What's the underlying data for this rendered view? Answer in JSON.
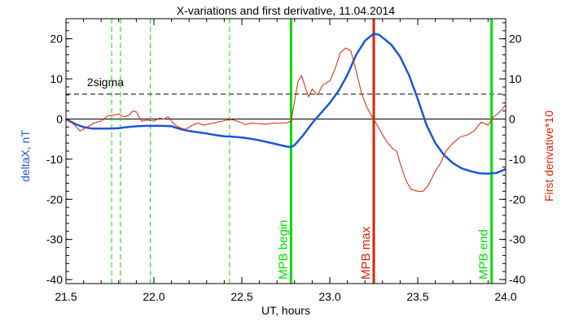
{
  "chart_data": {
    "type": "line",
    "title": "X-variations and first derivative, 11.04.2014",
    "xlabel": "UT, hours",
    "ylabel_left": "deltaX, nT",
    "ylabel_right": "First derivative*10",
    "xlim": [
      21.5,
      24.0
    ],
    "ylim": [
      -41,
      25
    ],
    "x_ticks": [
      "21.5",
      "22.0",
      "22.5",
      "23.0",
      "23.5",
      "24.0"
    ],
    "y_ticks_left": [
      "20",
      "10",
      "0",
      "-10",
      "-20",
      "-30",
      "-40"
    ],
    "y_ticks_right": [
      "20",
      "10",
      "0",
      "-10",
      "-20",
      "-30",
      "-40"
    ],
    "grid": false,
    "sigma_line": {
      "label": "2sigma",
      "y": 6.2
    },
    "dashed_verticals": [
      21.76,
      21.81,
      21.98,
      22.43
    ],
    "markers": [
      {
        "label": "MPB begin",
        "x": 22.78,
        "color": "#00dd00"
      },
      {
        "label": "MPB max",
        "x": 23.25,
        "color": "#dd2200"
      },
      {
        "label": "MPB end",
        "x": 23.92,
        "color": "#00dd00"
      }
    ],
    "series": [
      {
        "key": "deltaX",
        "color": "#1a56d6",
        "points": [
          [
            21.5,
            0.0
          ],
          [
            21.55,
            -1.2
          ],
          [
            21.6,
            -2.0
          ],
          [
            21.65,
            -2.4
          ],
          [
            21.7,
            -2.4
          ],
          [
            21.75,
            -2.4
          ],
          [
            21.8,
            -2.3
          ],
          [
            21.85,
            -2.0
          ],
          [
            21.9,
            -1.8
          ],
          [
            21.95,
            -1.7
          ],
          [
            22.0,
            -1.7
          ],
          [
            22.05,
            -1.7
          ],
          [
            22.1,
            -1.8
          ],
          [
            22.15,
            -2.5
          ],
          [
            22.2,
            -3.0
          ],
          [
            22.25,
            -3.3
          ],
          [
            22.3,
            -3.6
          ],
          [
            22.35,
            -4.0
          ],
          [
            22.4,
            -4.3
          ],
          [
            22.45,
            -4.4
          ],
          [
            22.5,
            -4.6
          ],
          [
            22.55,
            -4.9
          ],
          [
            22.6,
            -5.3
          ],
          [
            22.65,
            -5.8
          ],
          [
            22.7,
            -6.3
          ],
          [
            22.75,
            -6.8
          ],
          [
            22.78,
            -7.0
          ],
          [
            22.8,
            -6.5
          ],
          [
            22.85,
            -4.0
          ],
          [
            22.9,
            -1.0
          ],
          [
            22.95,
            1.5
          ],
          [
            23.0,
            4.0
          ],
          [
            23.05,
            7.0
          ],
          [
            23.1,
            11.0
          ],
          [
            23.15,
            16.0
          ],
          [
            23.2,
            19.5
          ],
          [
            23.25,
            21.3
          ],
          [
            23.28,
            21.0
          ],
          [
            23.3,
            20.3
          ],
          [
            23.35,
            18.5
          ],
          [
            23.4,
            15.5
          ],
          [
            23.45,
            11.0
          ],
          [
            23.5,
            5.0
          ],
          [
            23.55,
            -1.5
          ],
          [
            23.6,
            -6.0
          ],
          [
            23.65,
            -9.0
          ],
          [
            23.7,
            -11.0
          ],
          [
            23.75,
            -12.3
          ],
          [
            23.8,
            -13.0
          ],
          [
            23.85,
            -13.5
          ],
          [
            23.9,
            -13.6
          ],
          [
            23.95,
            -13.4
          ],
          [
            24.0,
            -12.5
          ]
        ]
      },
      {
        "key": "derivative",
        "color": "#dd2200",
        "points": [
          [
            21.5,
            0.0
          ],
          [
            21.55,
            -1.5
          ],
          [
            21.58,
            -3.0
          ],
          [
            21.62,
            -2.0
          ],
          [
            21.66,
            -1.0
          ],
          [
            21.7,
            -0.5
          ],
          [
            21.74,
            0.8
          ],
          [
            21.78,
            1.0
          ],
          [
            21.8,
            1.3
          ],
          [
            21.83,
            0.5
          ],
          [
            21.86,
            1.0
          ],
          [
            21.88,
            2.0
          ],
          [
            21.9,
            1.8
          ],
          [
            21.93,
            -0.5
          ],
          [
            21.96,
            -0.3
          ],
          [
            22.0,
            -0.5
          ],
          [
            22.03,
            0.2
          ],
          [
            22.06,
            0.0
          ],
          [
            22.08,
            0.6
          ],
          [
            22.1,
            -0.5
          ],
          [
            22.12,
            -1.5
          ],
          [
            22.15,
            -2.2
          ],
          [
            22.18,
            -2.6
          ],
          [
            22.22,
            -1.5
          ],
          [
            22.25,
            -1.0
          ],
          [
            22.28,
            -1.5
          ],
          [
            22.32,
            -1.2
          ],
          [
            22.36,
            -0.8
          ],
          [
            22.4,
            -0.4
          ],
          [
            22.44,
            -0.1
          ],
          [
            22.48,
            -0.6
          ],
          [
            22.52,
            -1.4
          ],
          [
            22.56,
            -1.0
          ],
          [
            22.6,
            -1.2
          ],
          [
            22.64,
            -1.3
          ],
          [
            22.68,
            -1.0
          ],
          [
            22.72,
            -1.1
          ],
          [
            22.76,
            -0.9
          ],
          [
            22.78,
            -0.5
          ],
          [
            22.8,
            4.5
          ],
          [
            22.82,
            9.5
          ],
          [
            22.84,
            10.8
          ],
          [
            22.86,
            8.0
          ],
          [
            22.88,
            5.5
          ],
          [
            22.9,
            7.5
          ],
          [
            22.93,
            6.0
          ],
          [
            22.96,
            8.5
          ],
          [
            23.0,
            9.5
          ],
          [
            23.03,
            12.5
          ],
          [
            23.06,
            16.5
          ],
          [
            23.09,
            17.7
          ],
          [
            23.12,
            17.0
          ],
          [
            23.15,
            12.0
          ],
          [
            23.18,
            6.5
          ],
          [
            23.21,
            3.0
          ],
          [
            23.24,
            0.6
          ],
          [
            23.27,
            -1.5
          ],
          [
            23.3,
            -4.0
          ],
          [
            23.33,
            -6.0
          ],
          [
            23.36,
            -7.5
          ],
          [
            23.38,
            -8.0
          ],
          [
            23.4,
            -11.0
          ],
          [
            23.43,
            -15.0
          ],
          [
            23.46,
            -17.5
          ],
          [
            23.5,
            -18.0
          ],
          [
            23.53,
            -18.0
          ],
          [
            23.56,
            -16.5
          ],
          [
            23.6,
            -13.0
          ],
          [
            23.63,
            -11.0
          ],
          [
            23.66,
            -8.0
          ],
          [
            23.7,
            -6.0
          ],
          [
            23.74,
            -4.5
          ],
          [
            23.78,
            -4.0
          ],
          [
            23.82,
            -3.0
          ],
          [
            23.86,
            -0.8
          ],
          [
            23.9,
            -1.5
          ],
          [
            23.93,
            0.5
          ],
          [
            23.96,
            1.5
          ],
          [
            24.0,
            3.5
          ]
        ]
      }
    ]
  }
}
